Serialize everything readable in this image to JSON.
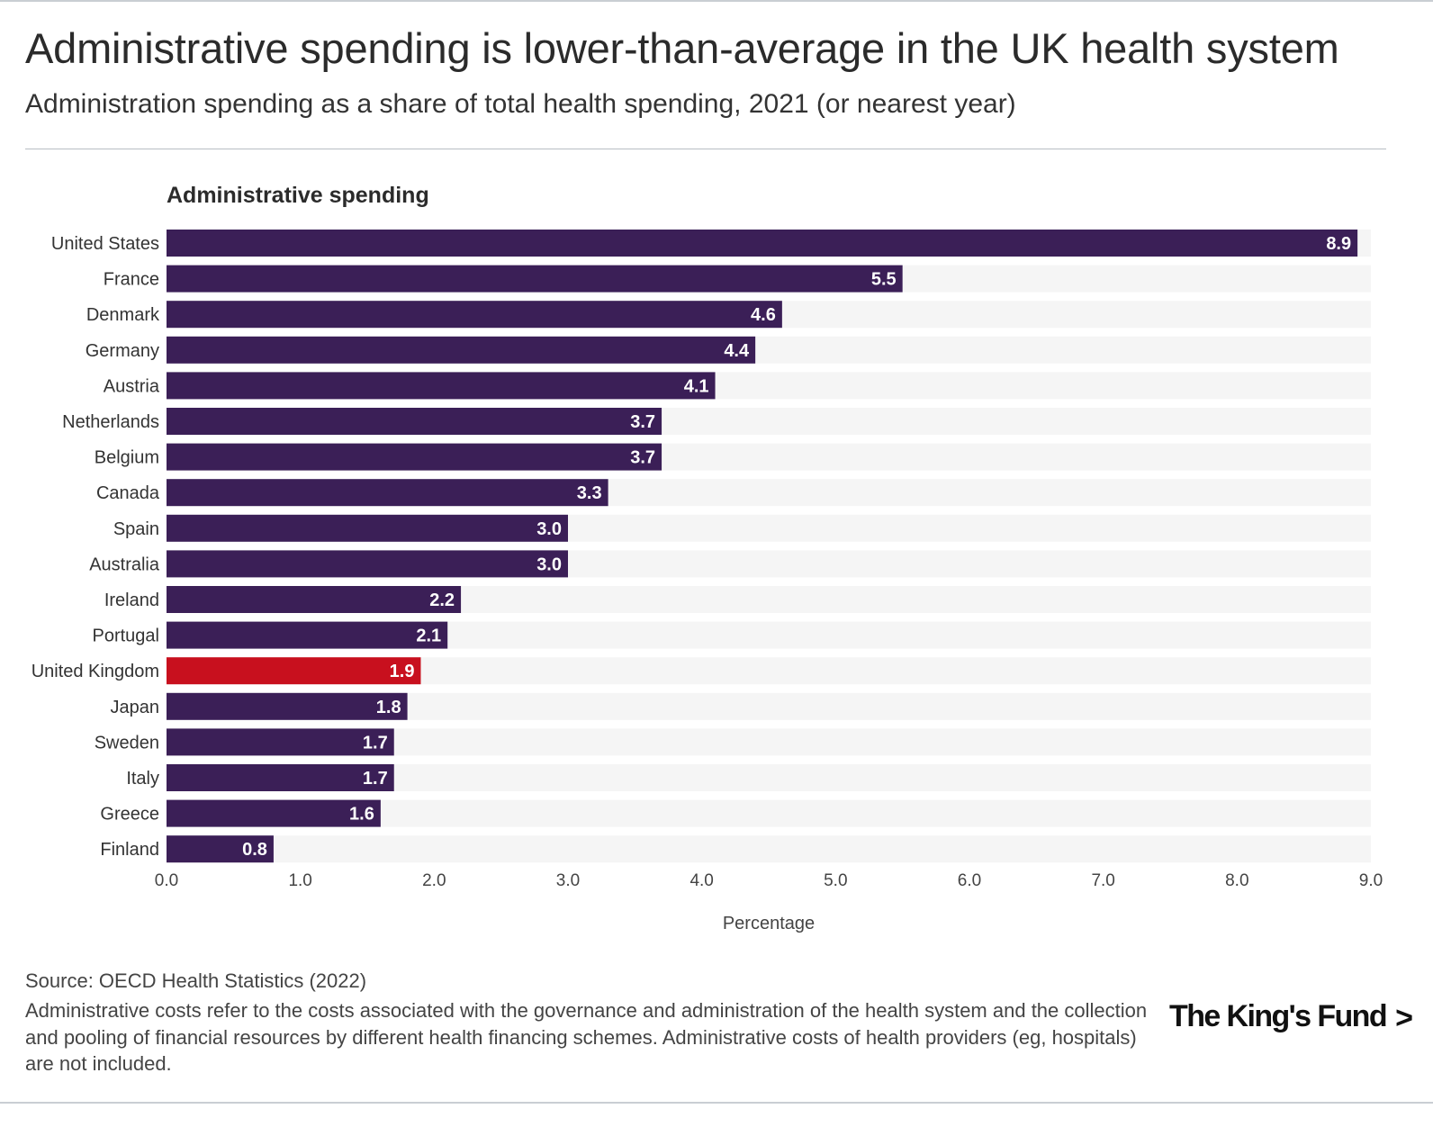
{
  "header": {
    "title": "Administrative spending is lower-than-average in the UK health system",
    "subtitle": "Administration spending as a share of total health spending, 2021 (or nearest year)"
  },
  "chart_data": {
    "type": "bar",
    "orientation": "horizontal",
    "title": "Administrative spending",
    "xlabel": "Percentage",
    "ylabel": "",
    "xlim": [
      0,
      9
    ],
    "xticks": [
      "0.0",
      "1.0",
      "2.0",
      "3.0",
      "4.0",
      "5.0",
      "6.0",
      "7.0",
      "8.0",
      "9.0"
    ],
    "categories": [
      "United States",
      "France",
      "Denmark",
      "Germany",
      "Austria",
      "Netherlands",
      "Belgium",
      "Canada",
      "Spain",
      "Australia",
      "Ireland",
      "Portugal",
      "United Kingdom",
      "Japan",
      "Sweden",
      "Italy",
      "Greece",
      "Finland"
    ],
    "values": [
      8.9,
      5.5,
      4.6,
      4.4,
      4.1,
      3.7,
      3.7,
      3.3,
      3.0,
      3.0,
      2.2,
      2.1,
      1.9,
      1.8,
      1.7,
      1.7,
      1.6,
      0.8
    ],
    "value_labels": [
      "8.9",
      "5.5",
      "4.6",
      "4.4",
      "4.1",
      "3.7",
      "3.7",
      "3.3",
      "3.0",
      "3.0",
      "2.2",
      "2.1",
      "1.9",
      "1.8",
      "1.7",
      "1.7",
      "1.6",
      "0.8"
    ],
    "highlight": "United Kingdom",
    "colors": {
      "bar": "#3b1f57",
      "highlight": "#c8101e",
      "track": "#f5f5f5",
      "label_text": "#ffffff"
    }
  },
  "footer": {
    "source": "Source: OECD Health Statistics (2022)",
    "note": "Administrative costs refer to the costs associated with the governance and administration of the health system and the collection and pooling of financial resources by different health financing schemes. Administrative costs of health providers (eg, hospitals) are not included.",
    "logo_text": "The King's Fund",
    "logo_chevron": ">"
  }
}
